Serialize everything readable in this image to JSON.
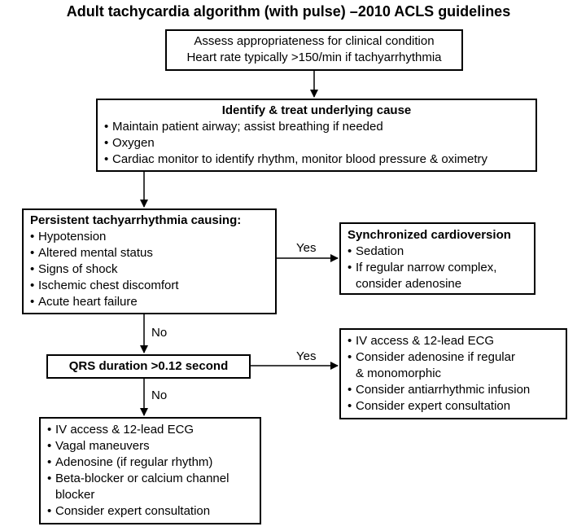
{
  "title": "Adult tachycardia algorithm (with pulse) –2010 ACLS guidelines",
  "assess": {
    "line1": "Assess appropriateness  for clinical condition",
    "line2": "Heart rate typically >150/min if tachyarrhythmia"
  },
  "identify": {
    "heading": "Identify & treat underlying cause",
    "items": [
      "Maintain patient airway; assist breathing if needed",
      "Oxygen",
      "Cardiac monitor to identify rhythm, monitor blood pressure & oximetry"
    ]
  },
  "persistent": {
    "heading": "Persistent tachyarrhythmia causing:",
    "items": [
      "Hypotension",
      "Altered mental status",
      "Signs of shock",
      "Ischemic chest discomfort",
      "Acute heart failure"
    ]
  },
  "cardioversion": {
    "heading": "Synchronized cardioversion",
    "items": [
      "Sedation",
      "If regular narrow complex,"
    ],
    "item2_cont": "consider adenosine"
  },
  "qrs": {
    "label": "QRS duration  >0.12 second"
  },
  "wide": {
    "items": [
      "IV access & 12-lead  ECG",
      "Consider adenosine if regular",
      "Consider antiarrhythmic infusion",
      "Consider expert consultation"
    ],
    "item2_cont": "& monomorphic"
  },
  "narrow": {
    "items": [
      "IV access & 12-lead  ECG",
      "Vagal maneuvers",
      "Adenosine  (if regular rhythm)",
      "Beta-blocker or calcium channel",
      "Consider expert consultation"
    ],
    "item4_cont": "blocker"
  },
  "labels": {
    "yes1": "Yes",
    "no1": "No",
    "yes2": "Yes",
    "no2": "No"
  }
}
